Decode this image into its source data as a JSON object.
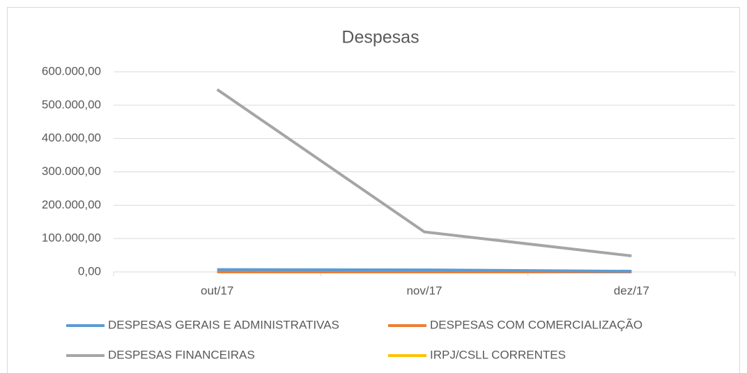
{
  "chart_data": {
    "type": "line",
    "title": "Despesas",
    "categories": [
      "out/17",
      "nov/17",
      "dez/17"
    ],
    "series": [
      {
        "name": "DESPESAS GERAIS E ADMINISTRATIVAS",
        "color": "#5b9bd5",
        "values": [
          7000,
          6000,
          2000
        ]
      },
      {
        "name": "DESPESAS COM COMERCIALIZAÇÃO",
        "color": "#ed7d31",
        "values": [
          0,
          0,
          0
        ]
      },
      {
        "name": "DESPESAS FINANCEIRAS",
        "color": "#a5a5a5",
        "values": [
          547000,
          120000,
          48000
        ]
      },
      {
        "name": "IRPJ/CSLL CORRENTES",
        "color": "#ffc000",
        "values": [
          0,
          0,
          0
        ]
      }
    ],
    "ylim": [
      0,
      600000
    ],
    "yticks": [
      {
        "value": 0,
        "label": "0,00"
      },
      {
        "value": 100000,
        "label": "100.000,00"
      },
      {
        "value": 200000,
        "label": "200.000,00"
      },
      {
        "value": 300000,
        "label": "300.000,00"
      },
      {
        "value": 400000,
        "label": "400.000,00"
      },
      {
        "value": 500000,
        "label": "500.000,00"
      },
      {
        "value": 600000,
        "label": "600.000,00"
      }
    ],
    "grid": true
  }
}
